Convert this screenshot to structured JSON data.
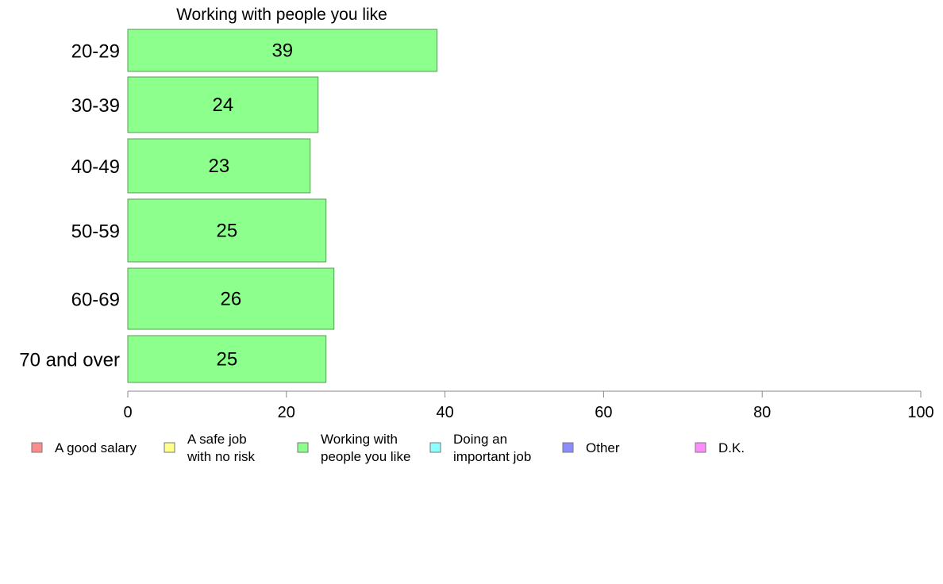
{
  "chart_data": {
    "type": "bar",
    "orientation": "horizontal",
    "title": "Working with people you like",
    "categories": [
      "20-29",
      "30-39",
      "40-49",
      "50-59",
      "60-69",
      "70 and over"
    ],
    "series": [
      {
        "name": "Working with people you like",
        "values": [
          39,
          24,
          23,
          25,
          26,
          25
        ],
        "color": "#8cff8c"
      }
    ],
    "data_labels": [
      "39",
      "24",
      "23",
      "25",
      "26",
      "25"
    ],
    "x_ticks": [
      "0",
      "20",
      "40",
      "60",
      "80",
      "100"
    ],
    "xlim": [
      0,
      100
    ],
    "grid": false,
    "legend_position": "bottom",
    "legend": [
      {
        "lines": [
          "A good salary"
        ],
        "color": "#ff8c8c"
      },
      {
        "lines": [
          "A safe job",
          "with no risk"
        ],
        "color": "#ffff8c"
      },
      {
        "lines": [
          "Working with",
          "people you like"
        ],
        "color": "#8cff8c"
      },
      {
        "lines": [
          "Doing an",
          "important job"
        ],
        "color": "#8cffff"
      },
      {
        "lines": [
          "Other"
        ],
        "color": "#8c8cff"
      },
      {
        "lines": [
          "D.K."
        ],
        "color": "#ff8cff"
      }
    ],
    "bar_border_color": "#5a9a5a",
    "axis_color": "#888888"
  }
}
